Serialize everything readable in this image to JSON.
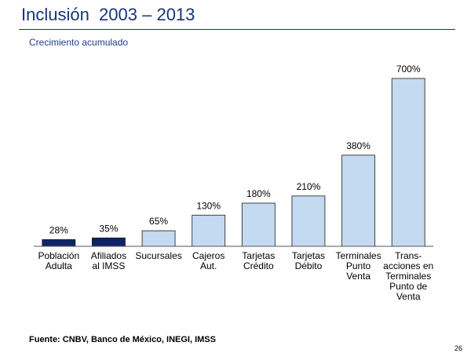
{
  "slide": {
    "title": "Inclusión  2003 – 2013",
    "source": "Fuente: CNBV, Banco de México, INEGI, IMSS",
    "page_number": "26"
  },
  "chart_data": {
    "type": "bar",
    "title": "",
    "subtitle": "Crecimiento acumulado",
    "xlabel": "",
    "ylabel": "",
    "ylim": [
      0,
      700
    ],
    "grid": false,
    "categories": [
      [
        "Población",
        "Adulta"
      ],
      [
        "Afiliados",
        "al IMSS"
      ],
      [
        "Sucursales"
      ],
      [
        "Cajeros",
        "Aut."
      ],
      [
        "Tarjetas",
        "Crédito"
      ],
      [
        "Tarjetas",
        "Débito"
      ],
      [
        "Terminales",
        "Punto",
        "Venta"
      ],
      [
        "Trans-",
        "acciones en",
        "Terminales",
        "Punto de",
        "Venta"
      ]
    ],
    "values": [
      28,
      35,
      65,
      130,
      180,
      210,
      380,
      700
    ],
    "data_labels": [
      "28%",
      "35%",
      "65%",
      "130%",
      "180%",
      "210%",
      "380%",
      "700%"
    ],
    "colors": [
      "#0e2467",
      "#0e2467",
      "#c3daf0",
      "#c3daf0",
      "#c3daf0",
      "#c3daf0",
      "#c3daf0",
      "#c3daf0"
    ],
    "bar_edge_color": "#1a1a1a",
    "axis_color": "#555555"
  }
}
